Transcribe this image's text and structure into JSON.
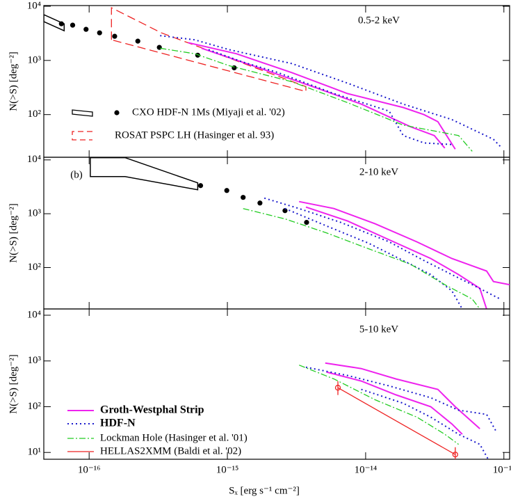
{
  "chart_data": [
    {
      "type": "line",
      "label": "0.5-2 keV",
      "ylabel": "N(>S) [deg⁻²]",
      "log_x": true,
      "log_y": true,
      "legend": "lower left",
      "xlim": [
        4.7e-17,
        1.1e-13
      ],
      "xticks": [
        1e-16,
        1e-15,
        1e-14,
        1e-13
      ],
      "ylim": [
        16.3,
        10300
      ],
      "yticks": [
        {
          "value": 100,
          "label": "10²"
        },
        {
          "value": 1000,
          "label": "10³"
        },
        {
          "value": 10000,
          "label": "10⁴"
        }
      ],
      "series": [
        {
          "name": "CXO HDF-N 1Ms (Miyaji et al. '02)",
          "style": "points",
          "color": "#000000",
          "x": [
            6.3e-17,
            7.6e-17,
            9.5e-17,
            1.19e-16,
            1.53e-16,
            2.25e-16,
            3.22e-16,
            6.1e-16,
            1.12e-15
          ],
          "values": [
            4750,
            4480,
            3750,
            3230,
            2790,
            2270,
            1740,
            1250,
            730
          ]
        },
        {
          "style": "polygon",
          "color": "#000000",
          "x": [
            4.7e-17,
            6.6e-17,
            6.6e-17,
            4.7e-17
          ],
          "values": [
            7000,
            4750,
            3530,
            5200
          ]
        },
        {
          "name": "ROSAT PSPC LH (Hasinger et al. 93)",
          "style": "polygon-dashed",
          "color": "#ee2222",
          "x": [
            1.45e-16,
            1.45e-16,
            3.33e-16,
            3.7e-15,
            3.7e-15
          ],
          "values": [
            2400,
            9400,
            3230,
            328,
            267
          ]
        },
        {
          "style": "solid",
          "color": "#ee22ee",
          "x": [
            5.2e-16,
            1.16e-15,
            2.93e-15,
            7.4e-15,
            1.87e-14,
            2.64e-14,
            3.33e-14,
            4.45e-14
          ],
          "values": [
            2130,
            1330,
            595,
            244,
            135,
            100,
            74,
            23
          ]
        },
        {
          "style": "solid",
          "color": "#ee22ee",
          "x": [
            6.5e-16,
            1.64e-15,
            4.15e-15,
            9.3e-15,
            2.1e-14,
            3.14e-14,
            3.74e-14
          ],
          "values": [
            1680,
            750,
            328,
            156,
            60,
            41,
            24
          ]
        },
        {
          "style": "dotted",
          "color": "#1a1acc",
          "x": [
            3.26e-16,
            5.8e-16,
            1.03e-15,
            2.93e-15,
            7.4e-15,
            1.87e-14,
            4.2e-14,
            8.4e-14,
            9.4e-14
          ],
          "values": [
            2870,
            2400,
            1580,
            875,
            381,
            156,
            81,
            35,
            26
          ]
        },
        {
          "style": "dotted",
          "color": "#1a1acc",
          "x": [
            7.3e-16,
            1.3e-15,
            2.33e-15,
            5.9e-15,
            1.48e-14,
            1.87e-14,
            2.64e-14,
            4.2e-14
          ],
          "values": [
            1580,
            930,
            595,
            244,
            116,
            41,
            30,
            28
          ]
        },
        {
          "style": "dashdot",
          "color": "#22cc22",
          "x": [
            3.26e-16,
            5.8e-16,
            1.03e-15,
            2.93e-15,
            7.4e-15,
            1.87e-14,
            4.7e-14,
            5.9e-14
          ],
          "values": [
            1680,
            1330,
            800,
            404,
            166,
            64,
            41,
            21
          ]
        }
      ]
    },
    {
      "type": "line",
      "label": "2-10 keV",
      "tag": "(b)",
      "ylabel": "N(>S) [deg⁻²]",
      "log_x": true,
      "log_y": true,
      "xlim": [
        4.7e-17,
        1.1e-13
      ],
      "xticks": [
        1e-16,
        1e-15,
        1e-14,
        1e-13
      ],
      "ylim": [
        17,
        11200
      ],
      "yticks": [
        {
          "value": 100,
          "label": "10²"
        },
        {
          "value": 1000,
          "label": "10³"
        },
        {
          "value": 10000,
          "label": "10⁴"
        }
      ],
      "series": [
        {
          "style": "points",
          "color": "#000000",
          "x": [
            6.4e-16,
            9.9e-16,
            1.3e-15,
            1.72e-15,
            2.61e-15,
            3.74e-15
          ],
          "values": [
            3330,
            2700,
            2010,
            1580,
            1140,
            690
          ]
        },
        {
          "style": "polygon",
          "color": "#000000",
          "x": [
            1.02e-16,
            1.82e-16,
            6.1e-16,
            6.1e-16,
            1.82e-16,
            1.02e-16
          ],
          "values": [
            11000,
            11000,
            3750,
            2790,
            4900,
            4900
          ]
        },
        {
          "style": "solid",
          "color": "#ee22ee",
          "x": [
            3.3e-15,
            5.9e-15,
            1.17e-14,
            2.35e-14,
            4.2e-14,
            7.5e-14,
            8.4e-14,
            1.1e-13
          ],
          "values": [
            1680,
            1250,
            650,
            300,
            147,
            86,
            55,
            48
          ]
        },
        {
          "style": "solid",
          "color": "#ee22ee",
          "x": [
            3.7e-15,
            7.4e-15,
            1.48e-14,
            2.96e-14,
            4.7e-14,
            6.7e-14,
            7.5e-14
          ],
          "values": [
            1330,
            733,
            328,
            147,
            74,
            41,
            17
          ]
        },
        {
          "style": "dotted",
          "color": "#1a1acc",
          "x": [
            1.85e-15,
            3.3e-15,
            6.6e-15,
            1.48e-14,
            2.64e-14,
            4.2e-14,
            5.9e-14,
            9.4e-14
          ],
          "values": [
            1950,
            1250,
            690,
            300,
            135,
            74,
            48,
            26
          ]
        },
        {
          "style": "dotted",
          "color": "#1a1acc",
          "x": [
            2.61e-15,
            5.2e-15,
            1.05e-14,
            2.1e-14,
            2.96e-14,
            4.2e-14,
            5e-14
          ],
          "values": [
            1250,
            595,
            283,
            116,
            74,
            37,
            17
          ]
        },
        {
          "style": "dashdot",
          "color": "#22cc22",
          "x": [
            1.3e-15,
            2.61e-15,
            5.2e-15,
            1.05e-14,
            2.1e-14,
            3.74e-14,
            5.9e-14,
            6.7e-14
          ],
          "values": [
            1250,
            800,
            441,
            223,
            116,
            48,
            26,
            17
          ]
        }
      ]
    },
    {
      "type": "line",
      "label": "5-10 keV",
      "ylabel": "N(>S) [deg⁻²]",
      "xlabel": "Sₓ  [erg s⁻¹ cm⁻²]",
      "log_x": true,
      "log_y": true,
      "legend": "lower left",
      "xlim": [
        4.7e-17,
        1.1e-13
      ],
      "xticks": [
        {
          "value": 1e-16,
          "label": "10⁻¹⁶"
        },
        {
          "value": 1e-15,
          "label": "10⁻¹⁵"
        },
        {
          "value": 1e-14,
          "label": "10⁻¹⁴"
        },
        {
          "value": 1e-13,
          "label": "10⁻¹³"
        }
      ],
      "ylim": [
        7.1,
        13700
      ],
      "yticks": [
        {
          "value": 10,
          "label": "10¹"
        },
        {
          "value": 100,
          "label": "10²"
        },
        {
          "value": 1000,
          "label": "10³"
        },
        {
          "value": 10000,
          "label": "10⁴"
        }
      ],
      "series": [
        {
          "name": "Groth-Westphal Strip",
          "style": "solid",
          "color": "#ee22ee",
          "x": [
            5.1e-15,
            9.3e-15,
            1.66e-14,
            3.33e-14,
            4.45e-14,
            6.7e-14
          ],
          "values": [
            900,
            681,
            404,
            239,
            100,
            33
          ]
        },
        {
          "style": "solid",
          "color": "#ee22ee",
          "x": [
            5.2e-15,
            9.3e-15,
            1.66e-14,
            2.96e-14,
            4.2e-14,
            5e-14
          ],
          "values": [
            573,
            364,
            181,
            100,
            42,
            25
          ]
        },
        {
          "name": "HDF-N",
          "style": "dotted",
          "color": "#1a1acc",
          "x": [
            3.7e-15,
            7.4e-15,
            1.48e-14,
            2.96e-14,
            4.7e-14,
            7.5e-14,
            8.9e-14
          ],
          "values": [
            731,
            481,
            285,
            157,
            84,
            68,
            27
          ]
        },
        {
          "style": "dotted",
          "color": "#1a1acc",
          "x": [
            9.3e-15,
            1.87e-14,
            2.96e-14,
            4.7e-14,
            6.7e-14,
            7.7e-14
          ],
          "values": [
            239,
            119,
            59,
            25,
            15,
            7.1
          ]
        },
        {
          "name": "Lockman Hole (Hasinger et al. '01)",
          "style": "dashdot",
          "color": "#22cc22",
          "x": [
            3.3e-15,
            5.9e-15,
            1.17e-14,
            2.35e-14,
            3.74e-14,
            4.7e-14
          ],
          "values": [
            811,
            404,
            142,
            59,
            25,
            15
          ]
        },
        {
          "name": "HELLAS2XMM (Baldi et al. '02)",
          "style": "solid-thin",
          "marker": "open-circle",
          "color": "#ee2222",
          "x": [
            6.3e-15,
            4.45e-14
          ],
          "values": [
            260,
            9
          ],
          "err_low": [
            180,
            5
          ],
          "err_high": [
            360,
            13
          ]
        }
      ]
    }
  ]
}
